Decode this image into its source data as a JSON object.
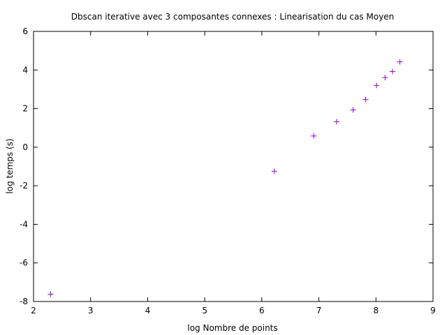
{
  "chart_data": {
    "type": "scatter",
    "title": "Dbscan iterative avec 3 composantes connexes : Linearisation du cas Moyen",
    "xlabel": "log Nombre de points",
    "ylabel": "log temps (s)",
    "xlim": [
      2,
      9
    ],
    "ylim": [
      -8,
      6
    ],
    "xticks": [
      2,
      3,
      4,
      5,
      6,
      7,
      8,
      9
    ],
    "yticks": [
      -8,
      -6,
      -4,
      -2,
      0,
      2,
      4,
      6
    ],
    "grid": false,
    "marker": "+",
    "colors": {
      "points": "#9400d3"
    },
    "series": [
      {
        "x": [
          2.3,
          6.22,
          6.91,
          7.31,
          7.6,
          7.82,
          8.01,
          8.16,
          8.29,
          8.42
        ],
        "y": [
          -7.62,
          -1.25,
          0.58,
          1.32,
          1.93,
          2.47,
          3.2,
          3.61,
          3.92,
          4.42
        ]
      }
    ]
  }
}
